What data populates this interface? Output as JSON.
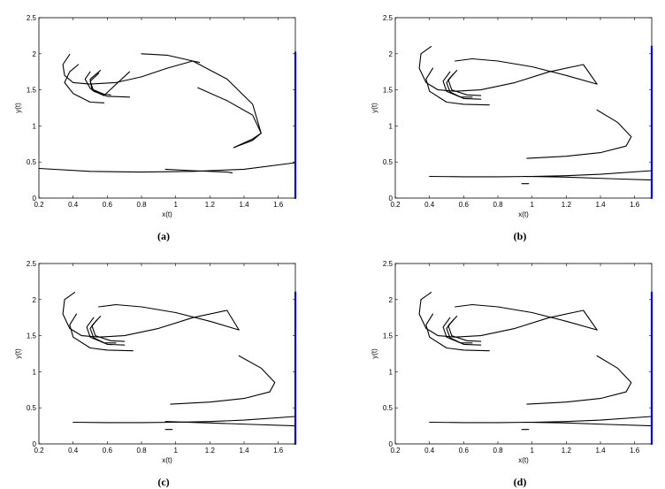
{
  "chart_data": [
    {
      "type": "line",
      "caption": "(a)",
      "xlabel": "x(t)",
      "ylabel": "y(t)",
      "xlim": [
        0.2,
        1.7
      ],
      "ylim": [
        0,
        2.5
      ],
      "xticks": [
        "0.2",
        "0.4",
        "0.6",
        "0.8",
        "1",
        "1.2",
        "1.4",
        "1.6"
      ],
      "yticks": [
        "0",
        "0.5",
        "1",
        "1.5",
        "2",
        "2.5"
      ],
      "grid": false,
      "series": [
        {
          "color": "#000000",
          "x": [
            0.38,
            0.34,
            0.35,
            0.4,
            0.5,
            0.65,
            0.8,
            0.95,
            1.1,
            1.14
          ],
          "y": [
            1.99,
            1.85,
            1.7,
            1.6,
            1.58,
            1.6,
            1.68,
            1.8,
            1.9,
            1.88
          ]
        },
        {
          "color": "#000000",
          "x": [
            0.43,
            0.38,
            0.35,
            0.4,
            0.5,
            0.58
          ],
          "y": [
            1.85,
            1.75,
            1.6,
            1.45,
            1.33,
            1.32
          ]
        },
        {
          "color": "#000000",
          "x": [
            0.8,
            0.95,
            1.1,
            1.3,
            1.45,
            1.5,
            1.45,
            1.34
          ],
          "y": [
            2.0,
            1.98,
            1.9,
            1.65,
            1.3,
            0.9,
            0.82,
            0.7
          ]
        },
        {
          "color": "#000000",
          "x": [
            1.13,
            1.3,
            1.45,
            1.5,
            1.45,
            1.34
          ],
          "y": [
            1.53,
            1.35,
            1.15,
            0.9,
            0.8,
            0.7
          ]
        },
        {
          "color": "#000000",
          "x": [
            0.2,
            0.5,
            0.8,
            1.1,
            1.4,
            1.7
          ],
          "y": [
            0.41,
            0.37,
            0.36,
            0.37,
            0.4,
            0.49
          ]
        },
        {
          "color": "#000000",
          "x": [
            0.94,
            1.1,
            1.3,
            1.33
          ],
          "y": [
            0.4,
            0.38,
            0.36,
            0.35
          ]
        },
        {
          "color": "#000000",
          "x": [
            0.5,
            0.47,
            0.5,
            0.58,
            0.62
          ],
          "y": [
            1.75,
            1.65,
            1.52,
            1.44,
            1.43
          ]
        },
        {
          "color": "#000000",
          "x": [
            0.55,
            0.5,
            0.52,
            0.6,
            0.73
          ],
          "y": [
            1.73,
            1.62,
            1.48,
            1.41,
            1.4
          ]
        },
        {
          "color": "#000000",
          "x": [
            0.56,
            0.5,
            0.51,
            0.58,
            0.73
          ],
          "y": [
            1.77,
            1.65,
            1.5,
            1.42,
            1.75
          ]
        },
        {
          "color": "#0000ff",
          "x": [
            1.7,
            1.7
          ],
          "y": [
            0.0,
            2.02
          ]
        }
      ]
    },
    {
      "type": "line",
      "caption": "(b)",
      "xlabel": "x(t)",
      "ylabel": "y(t)",
      "xlim": [
        0.2,
        1.7
      ],
      "ylim": [
        0,
        2.5
      ],
      "xticks": [
        "0.2",
        "0.4",
        "0.6",
        "0.8",
        "1",
        "1.2",
        "1.4",
        "1.6"
      ],
      "yticks": [
        "0",
        "0.5",
        "1",
        "1.5",
        "2",
        "2.5"
      ],
      "grid": false,
      "series": [
        {
          "color": "#000000",
          "x": [
            0.41,
            0.35,
            0.34,
            0.38,
            0.45,
            0.55,
            0.7,
            0.9,
            1.1,
            1.3,
            1.38
          ],
          "y": [
            2.1,
            2.0,
            1.8,
            1.6,
            1.5,
            1.48,
            1.5,
            1.6,
            1.75,
            1.85,
            1.58
          ]
        },
        {
          "color": "#000000",
          "x": [
            0.42,
            0.38,
            0.4,
            0.5,
            0.6,
            0.75
          ],
          "y": [
            1.8,
            1.65,
            1.48,
            1.33,
            1.3,
            1.29
          ]
        },
        {
          "color": "#000000",
          "x": [
            0.55,
            0.65,
            0.8,
            1.0,
            1.2,
            1.38
          ],
          "y": [
            1.9,
            1.93,
            1.9,
            1.82,
            1.7,
            1.58
          ]
        },
        {
          "color": "#000000",
          "x": [
            1.38,
            1.5,
            1.58,
            1.55,
            1.4,
            1.2,
            0.97
          ],
          "y": [
            1.22,
            1.05,
            0.85,
            0.72,
            0.63,
            0.58,
            0.55
          ]
        },
        {
          "color": "#000000",
          "x": [
            0.4,
            0.6,
            0.8,
            1.0,
            1.2,
            1.4,
            1.7
          ],
          "y": [
            0.3,
            0.295,
            0.295,
            0.3,
            0.31,
            0.33,
            0.38
          ]
        },
        {
          "color": "#000000",
          "x": [
            0.95,
            1.2,
            1.45,
            1.7
          ],
          "y": [
            0.3,
            0.29,
            0.27,
            0.25
          ]
        },
        {
          "color": "#000000",
          "x": [
            0.94,
            0.98
          ],
          "y": [
            0.2,
            0.2
          ]
        },
        {
          "color": "#000000",
          "x": [
            0.52,
            0.48,
            0.5,
            0.58,
            0.65
          ],
          "y": [
            1.75,
            1.62,
            1.48,
            1.4,
            1.4
          ]
        },
        {
          "color": "#000000",
          "x": [
            0.56,
            0.51,
            0.53,
            0.62,
            0.7
          ],
          "y": [
            1.77,
            1.64,
            1.5,
            1.43,
            1.42
          ]
        },
        {
          "color": "#000000",
          "x": [
            0.54,
            0.5,
            0.52,
            0.6,
            0.7
          ],
          "y": [
            1.72,
            1.6,
            1.47,
            1.38,
            1.37
          ]
        },
        {
          "color": "#0000ff",
          "x": [
            1.7,
            1.7
          ],
          "y": [
            0.0,
            2.1
          ]
        }
      ]
    },
    {
      "type": "line",
      "caption": "(c)",
      "xlabel": "x(t)",
      "ylabel": "y(t)",
      "xlim": [
        0.2,
        1.7
      ],
      "ylim": [
        0,
        2.5
      ],
      "xticks": [
        "0.2",
        "0.4",
        "0.6",
        "0.8",
        "1",
        "1.2",
        "1.4",
        "1.6"
      ],
      "yticks": [
        "0",
        "0.5",
        "1",
        "1.5",
        "2",
        "2.5"
      ],
      "grid": false,
      "series": [
        {
          "color": "#000000",
          "x": [
            0.41,
            0.35,
            0.34,
            0.38,
            0.45,
            0.55,
            0.7,
            0.9,
            1.1,
            1.3,
            1.37
          ],
          "y": [
            2.1,
            2.0,
            1.8,
            1.6,
            1.5,
            1.48,
            1.5,
            1.6,
            1.75,
            1.85,
            1.58
          ]
        },
        {
          "color": "#000000",
          "x": [
            0.42,
            0.38,
            0.4,
            0.5,
            0.6,
            0.75
          ],
          "y": [
            1.8,
            1.65,
            1.48,
            1.33,
            1.3,
            1.29
          ]
        },
        {
          "color": "#000000",
          "x": [
            0.55,
            0.65,
            0.8,
            1.0,
            1.2,
            1.37
          ],
          "y": [
            1.9,
            1.93,
            1.9,
            1.82,
            1.7,
            1.58
          ]
        },
        {
          "color": "#000000",
          "x": [
            1.37,
            1.5,
            1.58,
            1.55,
            1.4,
            1.2,
            0.97
          ],
          "y": [
            1.22,
            1.05,
            0.85,
            0.72,
            0.63,
            0.58,
            0.55
          ]
        },
        {
          "color": "#000000",
          "x": [
            0.4,
            0.6,
            0.8,
            1.0,
            1.2,
            1.4,
            1.7
          ],
          "y": [
            0.3,
            0.295,
            0.295,
            0.3,
            0.31,
            0.33,
            0.38
          ]
        },
        {
          "color": "#000000",
          "x": [
            0.94,
            1.2,
            1.45,
            1.7
          ],
          "y": [
            0.31,
            0.29,
            0.27,
            0.25
          ]
        },
        {
          "color": "#000000",
          "x": [
            0.94,
            0.98
          ],
          "y": [
            0.2,
            0.2
          ]
        },
        {
          "color": "#000000",
          "x": [
            0.52,
            0.48,
            0.5,
            0.58,
            0.65
          ],
          "y": [
            1.75,
            1.62,
            1.48,
            1.4,
            1.4
          ]
        },
        {
          "color": "#000000",
          "x": [
            0.56,
            0.51,
            0.53,
            0.62,
            0.7
          ],
          "y": [
            1.77,
            1.64,
            1.5,
            1.43,
            1.42
          ]
        },
        {
          "color": "#000000",
          "x": [
            0.54,
            0.5,
            0.52,
            0.6,
            0.7
          ],
          "y": [
            1.72,
            1.6,
            1.47,
            1.38,
            1.37
          ]
        },
        {
          "color": "#0000ff",
          "x": [
            1.7,
            1.7
          ],
          "y": [
            0.0,
            2.1
          ]
        }
      ]
    },
    {
      "type": "line",
      "caption": "(d)",
      "xlabel": "x(t)",
      "ylabel": "y(t)",
      "xlim": [
        0.2,
        1.7
      ],
      "ylim": [
        0,
        2.5
      ],
      "xticks": [
        "0.2",
        "0.4",
        "0.6",
        "0.8",
        "1",
        "1.2",
        "1.4",
        "1.6"
      ],
      "yticks": [
        "0",
        "0.5",
        "1",
        "1.5",
        "2",
        "2.5"
      ],
      "grid": false,
      "series": [
        {
          "color": "#000000",
          "x": [
            0.41,
            0.35,
            0.34,
            0.38,
            0.45,
            0.55,
            0.7,
            0.9,
            1.1,
            1.3,
            1.38
          ],
          "y": [
            2.1,
            2.0,
            1.8,
            1.6,
            1.5,
            1.48,
            1.5,
            1.6,
            1.75,
            1.85,
            1.58
          ]
        },
        {
          "color": "#000000",
          "x": [
            0.42,
            0.38,
            0.4,
            0.5,
            0.6,
            0.75
          ],
          "y": [
            1.8,
            1.65,
            1.48,
            1.33,
            1.3,
            1.29
          ]
        },
        {
          "color": "#000000",
          "x": [
            0.55,
            0.65,
            0.8,
            1.0,
            1.2,
            1.38
          ],
          "y": [
            1.9,
            1.93,
            1.9,
            1.82,
            1.7,
            1.58
          ]
        },
        {
          "color": "#000000",
          "x": [
            1.38,
            1.5,
            1.58,
            1.55,
            1.4,
            1.2,
            0.97
          ],
          "y": [
            1.22,
            1.05,
            0.85,
            0.72,
            0.63,
            0.58,
            0.55
          ]
        },
        {
          "color": "#000000",
          "x": [
            0.4,
            0.6,
            0.8,
            1.0,
            1.2,
            1.4,
            1.7
          ],
          "y": [
            0.3,
            0.295,
            0.295,
            0.3,
            0.31,
            0.33,
            0.38
          ]
        },
        {
          "color": "#000000",
          "x": [
            0.95,
            1.2,
            1.45,
            1.7
          ],
          "y": [
            0.3,
            0.29,
            0.27,
            0.25
          ]
        },
        {
          "color": "#000000",
          "x": [
            0.94,
            0.98
          ],
          "y": [
            0.2,
            0.2
          ]
        },
        {
          "color": "#000000",
          "x": [
            0.52,
            0.48,
            0.5,
            0.58,
            0.65
          ],
          "y": [
            1.75,
            1.62,
            1.48,
            1.4,
            1.4
          ]
        },
        {
          "color": "#000000",
          "x": [
            0.56,
            0.51,
            0.53,
            0.62,
            0.7
          ],
          "y": [
            1.77,
            1.64,
            1.5,
            1.43,
            1.42
          ]
        },
        {
          "color": "#000000",
          "x": [
            0.54,
            0.5,
            0.52,
            0.6,
            0.7
          ],
          "y": [
            1.72,
            1.6,
            1.47,
            1.38,
            1.37
          ]
        },
        {
          "color": "#0000ff",
          "x": [
            1.7,
            1.7
          ],
          "y": [
            0.0,
            2.1
          ]
        }
      ]
    }
  ]
}
